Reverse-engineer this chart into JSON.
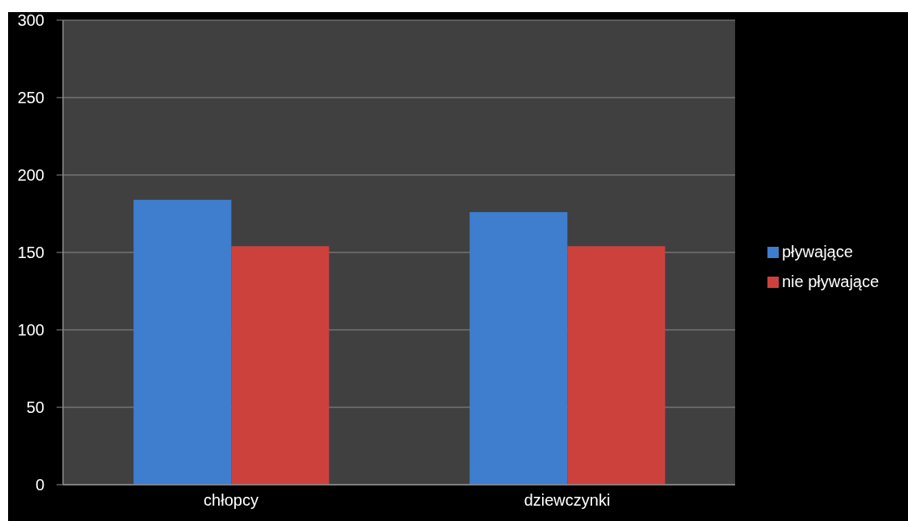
{
  "chart_data": {
    "type": "bar",
    "categories": [
      "chłopcy",
      "dziewczynki"
    ],
    "series": [
      {
        "name": "pływające",
        "color": "#3f7dcf",
        "values": [
          184,
          176
        ]
      },
      {
        "name": "nie pływające",
        "color": "#cd413d",
        "values": [
          154,
          154
        ]
      }
    ],
    "ylim": [
      0,
      300
    ],
    "yticks": [
      0,
      50,
      100,
      150,
      200,
      250,
      300
    ],
    "grid": "y",
    "legend": "right"
  }
}
